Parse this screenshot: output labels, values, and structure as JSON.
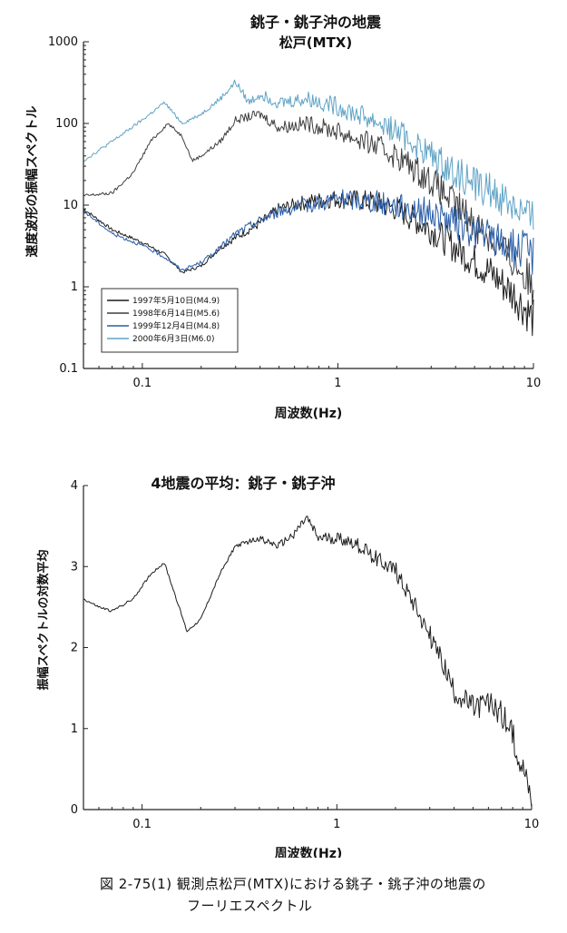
{
  "chart_data": [
    {
      "type": "line",
      "title": "銚子・銚子沖の地震",
      "subtitle": "松戸(MTX)",
      "xlabel": "周波数(Hz)",
      "ylabel": "速度波形の振幅スペクトル",
      "x_scale": "log",
      "y_scale": "log",
      "xlim": [
        0.05,
        10
      ],
      "ylim": [
        0.1,
        1000
      ],
      "x_ticks": [
        {
          "v": 0.1,
          "label": "0.1"
        },
        {
          "v": 1,
          "label": "1"
        },
        {
          "v": 10,
          "label": "10"
        }
      ],
      "y_ticks": [
        {
          "v": 0.1,
          "label": "0.1"
        },
        {
          "v": 1,
          "label": "1"
        },
        {
          "v": 10,
          "label": "10"
        },
        {
          "v": 100,
          "label": "100"
        },
        {
          "v": 1000,
          "label": "1000"
        }
      ],
      "legend_position": "bottom-left",
      "series": [
        {
          "name": "1997年5月10日(M4.9)",
          "color": "#1c1c1c",
          "points": [
            [
              0.05,
              9
            ],
            [
              0.07,
              5
            ],
            [
              0.1,
              3.5
            ],
            [
              0.13,
              2.5
            ],
            [
              0.16,
              1.5
            ],
            [
              0.2,
              1.8
            ],
            [
              0.25,
              3
            ],
            [
              0.3,
              4
            ],
            [
              0.4,
              6
            ],
            [
              0.5,
              9
            ],
            [
              0.7,
              11
            ],
            [
              1,
              12
            ],
            [
              1.5,
              11
            ],
            [
              2,
              9
            ],
            [
              3,
              5
            ],
            [
              4,
              3
            ],
            [
              6,
              1.5
            ],
            [
              8,
              0.8
            ],
            [
              10,
              0.4
            ]
          ]
        },
        {
          "name": "1998年6月14日(M5.6)",
          "color": "#3e3e3e",
          "points": [
            [
              0.05,
              13
            ],
            [
              0.07,
              14
            ],
            [
              0.09,
              25
            ],
            [
              0.11,
              60
            ],
            [
              0.135,
              100
            ],
            [
              0.16,
              70
            ],
            [
              0.18,
              35
            ],
            [
              0.2,
              40
            ],
            [
              0.25,
              60
            ],
            [
              0.3,
              110
            ],
            [
              0.4,
              130
            ],
            [
              0.5,
              90
            ],
            [
              0.7,
              100
            ],
            [
              1,
              80
            ],
            [
              1.5,
              55
            ],
            [
              2,
              40
            ],
            [
              3,
              20
            ],
            [
              4,
              10
            ],
            [
              6,
              4
            ],
            [
              8,
              2
            ],
            [
              10,
              1
            ]
          ]
        },
        {
          "name": "1999年12月4日(M4.8)",
          "color": "#2a5da8",
          "points": [
            [
              0.05,
              8.5
            ],
            [
              0.07,
              4.5
            ],
            [
              0.1,
              3.2
            ],
            [
              0.13,
              2.3
            ],
            [
              0.16,
              1.6
            ],
            [
              0.2,
              2
            ],
            [
              0.25,
              3
            ],
            [
              0.3,
              4.5
            ],
            [
              0.4,
              6.5
            ],
            [
              0.5,
              8.5
            ],
            [
              0.7,
              10
            ],
            [
              1,
              12
            ],
            [
              1.5,
              11
            ],
            [
              2,
              10
            ],
            [
              3,
              8
            ],
            [
              4,
              6
            ],
            [
              6,
              4
            ],
            [
              8,
              3
            ],
            [
              10,
              2.5
            ]
          ]
        },
        {
          "name": "2000年6月3日(M6.0)",
          "color": "#5fa3c6",
          "points": [
            [
              0.05,
              35
            ],
            [
              0.07,
              60
            ],
            [
              0.1,
              110
            ],
            [
              0.13,
              180
            ],
            [
              0.16,
              100
            ],
            [
              0.2,
              130
            ],
            [
              0.25,
              200
            ],
            [
              0.3,
              320
            ],
            [
              0.35,
              180
            ],
            [
              0.4,
              230
            ],
            [
              0.5,
              180
            ],
            [
              0.7,
              200
            ],
            [
              1,
              160
            ],
            [
              1.5,
              110
            ],
            [
              2,
              80
            ],
            [
              3,
              40
            ],
            [
              4,
              25
            ],
            [
              6,
              15
            ],
            [
              8,
              10
            ],
            [
              10,
              6
            ]
          ]
        }
      ]
    },
    {
      "type": "line",
      "title": "4地震の平均：銚子・銚子沖",
      "xlabel": "周波数(Hz)",
      "ylabel": "振幅スペクトルの対数平均",
      "x_scale": "log",
      "xlim": [
        0.05,
        10
      ],
      "ylim": [
        0,
        4
      ],
      "x_ticks": [
        {
          "v": 0.1,
          "label": "0.1"
        },
        {
          "v": 1,
          "label": "1"
        },
        {
          "v": 10,
          "label": "10"
        }
      ],
      "y_ticks": [
        {
          "v": 0,
          "label": "0"
        },
        {
          "v": 1,
          "label": "1"
        },
        {
          "v": 2,
          "label": "2"
        },
        {
          "v": 3,
          "label": "3"
        },
        {
          "v": 4,
          "label": "4"
        }
      ],
      "series": [
        {
          "color": "#1c1c1c",
          "points": [
            [
              0.05,
              2.6
            ],
            [
              0.06,
              2.5
            ],
            [
              0.07,
              2.45
            ],
            [
              0.09,
              2.6
            ],
            [
              0.11,
              2.9
            ],
            [
              0.13,
              3.05
            ],
            [
              0.15,
              2.6
            ],
            [
              0.17,
              2.2
            ],
            [
              0.2,
              2.35
            ],
            [
              0.25,
              2.9
            ],
            [
              0.3,
              3.25
            ],
            [
              0.4,
              3.35
            ],
            [
              0.5,
              3.25
            ],
            [
              0.6,
              3.4
            ],
            [
              0.7,
              3.6
            ],
            [
              0.8,
              3.35
            ],
            [
              1,
              3.35
            ],
            [
              1.2,
              3.3
            ],
            [
              1.5,
              3.15
            ],
            [
              2,
              2.95
            ],
            [
              2.5,
              2.55
            ],
            [
              3,
              2.15
            ],
            [
              3.5,
              1.8
            ],
            [
              4,
              1.45
            ],
            [
              5,
              1.25
            ],
            [
              6,
              1.3
            ],
            [
              7,
              1.2
            ],
            [
              8,
              0.9
            ],
            [
              9,
              0.55
            ],
            [
              10,
              0.15
            ]
          ]
        }
      ]
    }
  ],
  "caption": {
    "line1": "図 2-75(1)  観測点松戸(MTX)における銚子・銚子沖の地震の",
    "line2": "フーリエスペクトル"
  }
}
